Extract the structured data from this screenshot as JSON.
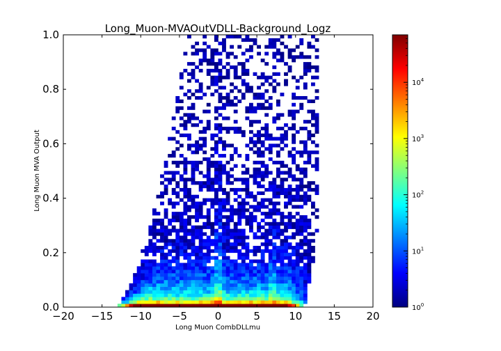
{
  "chart_data": {
    "type": "heatmap",
    "title": "Long_Muon-MVAOutVDLL-Background_Logz",
    "xlabel": "Long Muon CombDLLmu",
    "ylabel": "Long Muon MVA Output",
    "xlim": [
      -20,
      20
    ],
    "ylim": [
      0.0,
      1.0
    ],
    "x_ticks": [
      "−20",
      "−15",
      "−10",
      "−5",
      "0",
      "5",
      "10",
      "15",
      "20"
    ],
    "y_ticks": [
      "0.0",
      "0.2",
      "0.4",
      "0.6",
      "0.8",
      "1.0"
    ],
    "colorbar": {
      "scale": "log",
      "min": 1,
      "max": 70000,
      "colormap": "jet",
      "ticks": [
        {
          "base": "10",
          "exp": "0"
        },
        {
          "base": "10",
          "exp": "1"
        },
        {
          "base": "10",
          "exp": "2"
        },
        {
          "base": "10",
          "exp": "3"
        },
        {
          "base": "10",
          "exp": "4"
        }
      ]
    },
    "bins": {
      "x_min": -20,
      "x_max": 20,
      "nx": 80,
      "y_min": 0.0,
      "y_max": 1.0,
      "ny": 80
    },
    "grid": false,
    "legend": "none",
    "description_of_density": {
      "peak_region": {
        "x": [
          -12,
          9
        ],
        "y": [
          0.0,
          0.02
        ],
        "approx_counts": 50000
      },
      "vertical_ridges_at_x": [
        0,
        7
      ],
      "occupied_x_range_at_top": [
        -5,
        13
      ],
      "occupied_x_range_at_bottom": [
        -14,
        11
      ]
    }
  }
}
